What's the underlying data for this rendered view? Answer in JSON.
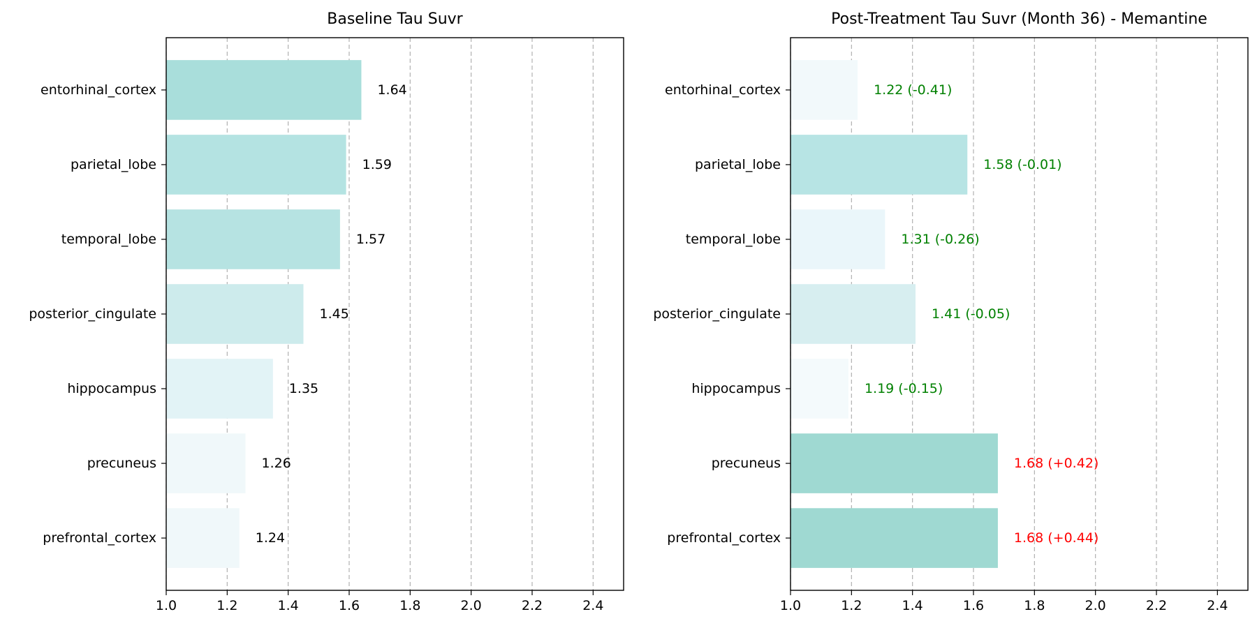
{
  "chart_data": [
    {
      "type": "bar",
      "orientation": "horizontal",
      "title": "Baseline Tau Suvr",
      "categories": [
        "entorhinal_cortex",
        "parietal_lobe",
        "temporal_lobe",
        "posterior_cingulate",
        "hippocampus",
        "precuneus",
        "prefrontal_cortex"
      ],
      "values": [
        1.64,
        1.59,
        1.57,
        1.45,
        1.35,
        1.26,
        1.24
      ],
      "value_labels": [
        "1.64",
        "1.59",
        "1.57",
        "1.45",
        "1.35",
        "1.26",
        "1.24"
      ],
      "label_colors": [
        "#000000",
        "#000000",
        "#000000",
        "#000000",
        "#000000",
        "#000000",
        "#000000"
      ],
      "bar_colors": [
        "#a9dedb",
        "#b4e3e2",
        "#b6e3e2",
        "#cdebec",
        "#e2f3f6",
        "#f0f8fa",
        "#f0f8fa"
      ],
      "xlim": [
        1.0,
        2.5
      ],
      "xticks": [
        "1.0",
        "1.2",
        "1.4",
        "1.6",
        "1.8",
        "2.0",
        "2.2",
        "2.4"
      ],
      "grid": "x",
      "xlabel": "",
      "ylabel": ""
    },
    {
      "type": "bar",
      "orientation": "horizontal",
      "title": "Post-Treatment Tau Suvr (Month 36) - Memantine",
      "categories": [
        "entorhinal_cortex",
        "parietal_lobe",
        "temporal_lobe",
        "posterior_cingulate",
        "hippocampus",
        "precuneus",
        "prefrontal_cortex"
      ],
      "values": [
        1.22,
        1.58,
        1.31,
        1.41,
        1.19,
        1.68,
        1.68
      ],
      "value_labels": [
        "1.22 (-0.41)",
        "1.58 (-0.01)",
        "1.31 (-0.26)",
        "1.41 (-0.05)",
        "1.19 (-0.15)",
        "1.68 (+0.42)",
        "1.68 (+0.44)"
      ],
      "label_colors": [
        "#008000",
        "#008000",
        "#008000",
        "#008000",
        "#008000",
        "#ff0000",
        "#ff0000"
      ],
      "bar_colors": [
        "#f2f9fb",
        "#b7e4e4",
        "#eaf6fa",
        "#d7eef0",
        "#f4fafc",
        "#9fd9d2",
        "#9fd9d2"
      ],
      "xlim": [
        1.0,
        2.5
      ],
      "xticks": [
        "1.0",
        "1.2",
        "1.4",
        "1.6",
        "1.8",
        "2.0",
        "2.2",
        "2.4"
      ],
      "grid": "x",
      "xlabel": "",
      "ylabel": ""
    }
  ]
}
